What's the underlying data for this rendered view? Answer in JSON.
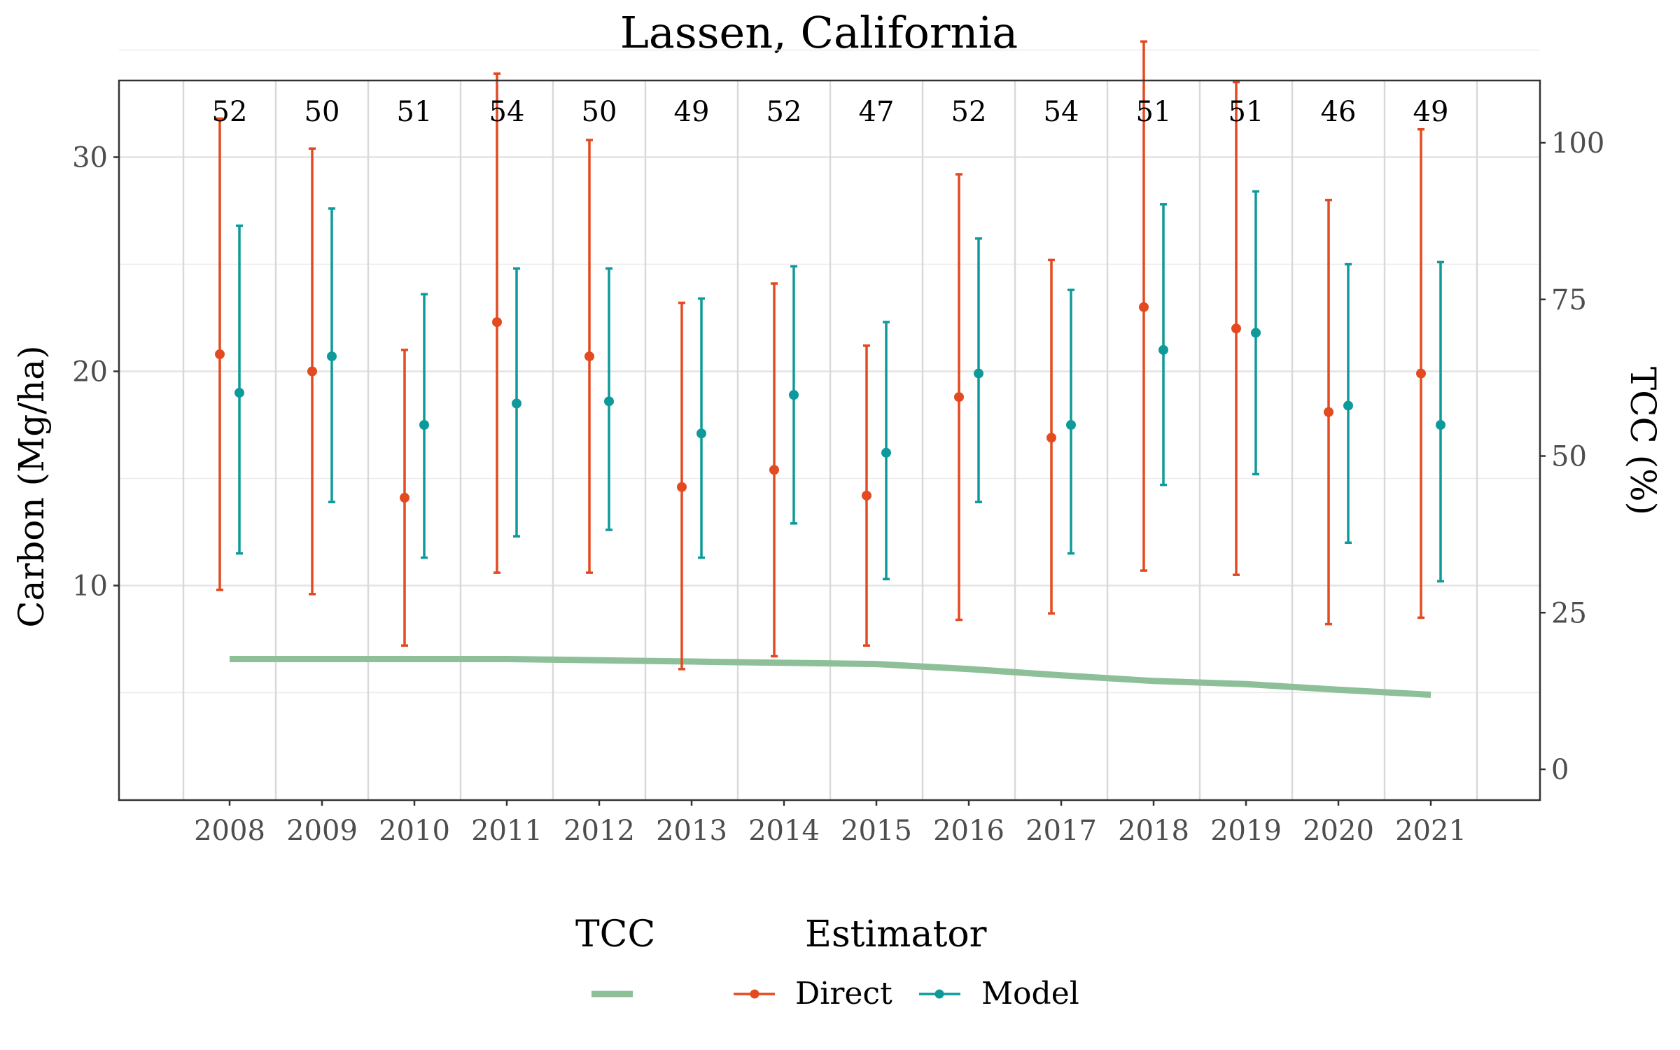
{
  "chart_data": {
    "type": "line",
    "title": "Lassen, California",
    "xlabel": "",
    "ylabel": "Carbon (Mg/ha)",
    "y2label": "TCC (%)",
    "ylim": [
      5,
      38.5
    ],
    "y2lim": [
      -5,
      110
    ],
    "yticks": [
      10,
      20,
      30
    ],
    "y2ticks": [
      0,
      25,
      50,
      75,
      100
    ],
    "categories": [
      "2008",
      "2009",
      "2010",
      "2011",
      "2012",
      "2013",
      "2014",
      "2015",
      "2016",
      "2017",
      "2018",
      "2019",
      "2020",
      "2021"
    ],
    "counts": [
      52,
      50,
      51,
      54,
      50,
      49,
      52,
      47,
      52,
      54,
      51,
      51,
      46,
      49
    ],
    "grid": true,
    "legend_position": "bottom",
    "series": [
      {
        "name": "Direct",
        "color": "#E34A1F",
        "type": "errorbar",
        "values": [
          20.8,
          20.0,
          14.1,
          22.3,
          20.7,
          14.6,
          15.4,
          14.2,
          18.8,
          16.9,
          23.0,
          22.0,
          18.1,
          19.9
        ],
        "lower": [
          9.8,
          9.6,
          7.2,
          10.6,
          10.6,
          6.1,
          6.7,
          7.2,
          8.4,
          8.7,
          10.7,
          10.5,
          8.2,
          8.5
        ],
        "upper": [
          31.8,
          30.4,
          21.0,
          33.9,
          30.8,
          23.2,
          24.1,
          21.2,
          29.2,
          25.2,
          35.4,
          33.5,
          28.0,
          31.3
        ]
      },
      {
        "name": "Model",
        "color": "#0E9A9A",
        "type": "errorbar",
        "values": [
          19.0,
          20.7,
          17.5,
          18.5,
          18.6,
          17.1,
          18.9,
          16.2,
          19.9,
          17.5,
          21.0,
          21.8,
          18.4,
          17.5
        ],
        "lower": [
          11.5,
          13.9,
          11.3,
          12.3,
          12.6,
          11.3,
          12.9,
          10.3,
          13.9,
          11.5,
          14.7,
          15.2,
          12.0,
          10.2
        ],
        "upper": [
          26.8,
          27.6,
          23.6,
          24.8,
          24.8,
          23.4,
          24.9,
          22.3,
          26.2,
          23.8,
          27.8,
          28.4,
          25.0,
          25.1
        ]
      },
      {
        "name": "TCC",
        "color": "#8DBF98",
        "type": "line",
        "axis": "y2",
        "values": [
          17.6,
          17.6,
          17.6,
          17.6,
          17.4,
          17.2,
          17.0,
          16.8,
          16.0,
          15.0,
          14.1,
          13.6,
          12.7,
          11.9
        ]
      }
    ],
    "legend": {
      "tcc_title": "TCC",
      "estimator_title": "Estimator",
      "direct_label": "Direct",
      "model_label": "Model"
    }
  }
}
